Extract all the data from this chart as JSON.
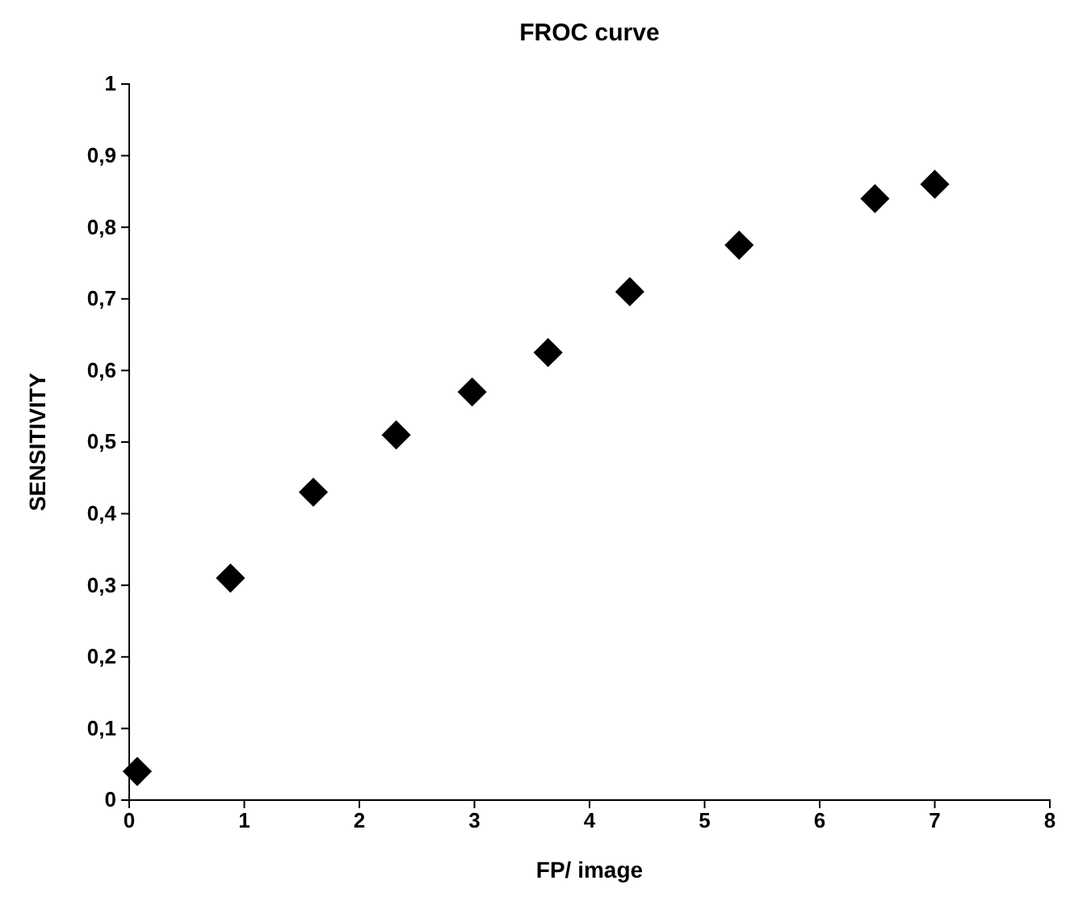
{
  "chart_data": {
    "type": "scatter",
    "title": "FROC curve",
    "xlabel": "FP/ image",
    "ylabel": "SENSITIVITY",
    "x": [
      0.07,
      0.88,
      1.6,
      2.32,
      2.98,
      3.64,
      4.35,
      5.3,
      6.48,
      7.0
    ],
    "series": [
      {
        "color": "#000000",
        "values": [
          0.04,
          0.31,
          0.43,
          0.51,
          0.57,
          0.625,
          0.71,
          0.775,
          0.84,
          0.86
        ]
      }
    ],
    "marker": "diamond",
    "grid": false,
    "xlim": [
      0,
      8
    ],
    "xticks": [
      0,
      1,
      2,
      3,
      4,
      5,
      6,
      7,
      8
    ],
    "ylim": [
      0,
      1
    ],
    "yticks": [
      0,
      {
        "value": 0.1,
        "label": "0,1"
      },
      {
        "value": 0.2,
        "label": "0,2"
      },
      {
        "value": 0.3,
        "label": "0,3"
      },
      {
        "value": 0.4,
        "label": "0,4"
      },
      {
        "value": 0.5,
        "label": "0,5"
      },
      {
        "value": 0.6,
        "label": "0,6"
      },
      {
        "value": 0.7,
        "label": "0,7"
      },
      {
        "value": 0.8,
        "label": "0,8"
      },
      {
        "value": 0.9,
        "label": "0,9"
      },
      1
    ]
  }
}
